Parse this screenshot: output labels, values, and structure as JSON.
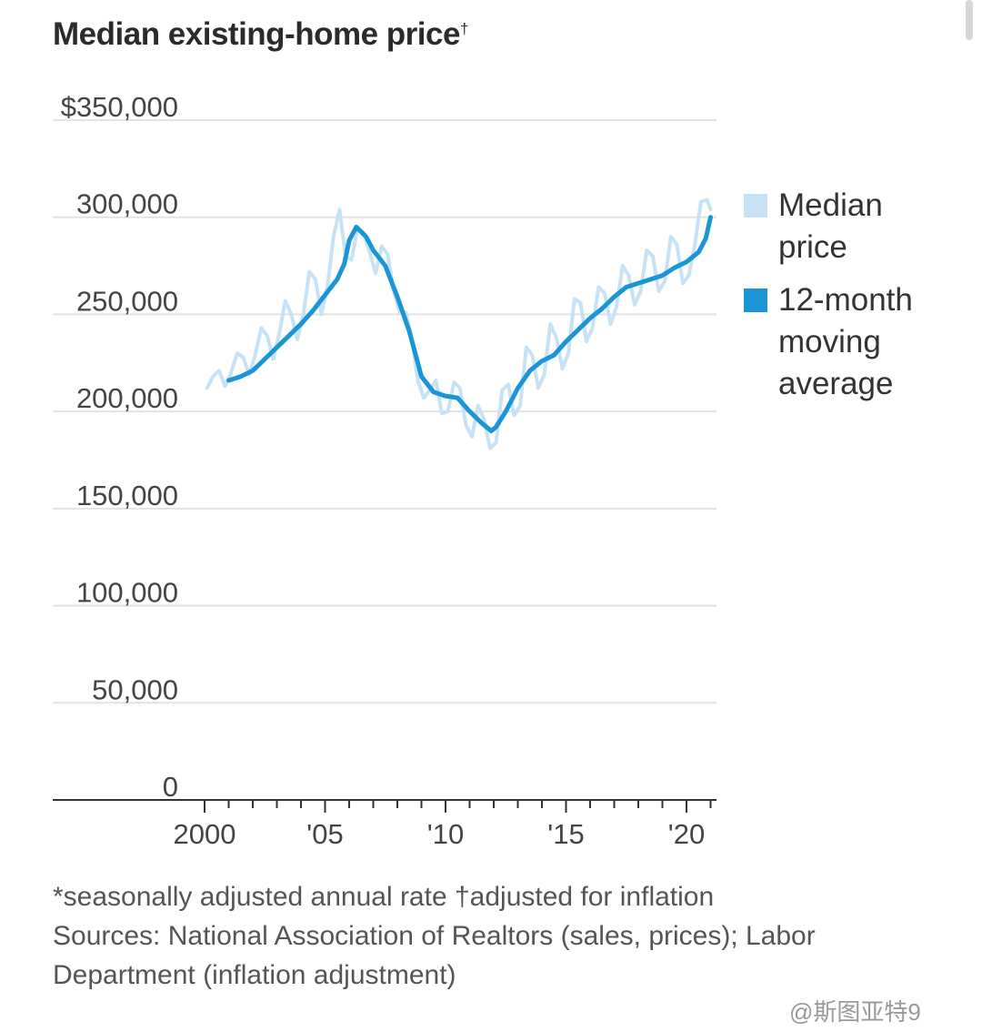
{
  "title": "Median existing-home price",
  "title_mark": "†",
  "legend": [
    {
      "label": "Median price",
      "color": "#c8e2f5"
    },
    {
      "label": "12-month moving average",
      "color": "#1a95d6"
    }
  ],
  "footnote": {
    "line1": "*seasonally adjusted annual rate †adjusted for inflation",
    "line2": "Sources: National Association of Realtors (sales, prices); Labor",
    "line3": "Department (inflation adjustment)"
  },
  "watermark": "@斯图亚特9",
  "chart_data": {
    "type": "line",
    "title": "Median existing-home price",
    "ylim": [
      0,
      350000
    ],
    "xlim": [
      1999.7,
      2021.1
    ],
    "y_ticks": [
      0,
      50000,
      100000,
      150000,
      200000,
      250000,
      300000,
      350000
    ],
    "y_tick_labels": [
      "0",
      "50,000",
      "100,000",
      "150,000",
      "200,000",
      "250,000",
      "300,000",
      "$350,000"
    ],
    "x_ticks": [
      2000,
      2005,
      2010,
      2015,
      2020
    ],
    "x_tick_labels": [
      "2000",
      "'05",
      "'10",
      "'15",
      "'20"
    ],
    "grid": true,
    "legend_position": "right",
    "series": [
      {
        "name": "Median price",
        "color": "#c8e2f5",
        "x": [
          2000.1,
          2000.35,
          2000.6,
          2000.85,
          2001.1,
          2001.35,
          2001.6,
          2001.85,
          2002.1,
          2002.35,
          2002.6,
          2002.85,
          2003.1,
          2003.35,
          2003.6,
          2003.85,
          2004.1,
          2004.35,
          2004.6,
          2004.85,
          2005.1,
          2005.35,
          2005.6,
          2005.85,
          2006.1,
          2006.35,
          2006.6,
          2006.85,
          2007.1,
          2007.35,
          2007.6,
          2007.85,
          2008.1,
          2008.35,
          2008.6,
          2008.85,
          2009.1,
          2009.35,
          2009.6,
          2009.85,
          2010.1,
          2010.35,
          2010.6,
          2010.85,
          2011.1,
          2011.35,
          2011.6,
          2011.85,
          2012.1,
          2012.35,
          2012.6,
          2012.85,
          2013.1,
          2013.35,
          2013.6,
          2013.85,
          2014.1,
          2014.35,
          2014.6,
          2014.85,
          2015.1,
          2015.35,
          2015.6,
          2015.85,
          2016.1,
          2016.35,
          2016.6,
          2016.85,
          2017.1,
          2017.35,
          2017.6,
          2017.85,
          2018.1,
          2018.35,
          2018.6,
          2018.85,
          2019.1,
          2019.35,
          2019.6,
          2019.85,
          2020.1,
          2020.35,
          2020.6,
          2020.85,
          2021.0
        ],
        "values": [
          212000,
          218000,
          221000,
          213000,
          220000,
          230000,
          228000,
          219000,
          229000,
          243000,
          239000,
          227000,
          240000,
          257000,
          250000,
          237000,
          250000,
          272000,
          268000,
          250000,
          264000,
          290000,
          304000,
          280000,
          278000,
          294000,
          292000,
          282000,
          271000,
          285000,
          281000,
          262000,
          251000,
          251000,
          238000,
          216000,
          207000,
          211000,
          216000,
          199000,
          200000,
          215000,
          212000,
          193000,
          187000,
          203000,
          196000,
          181000,
          184000,
          211000,
          214000,
          198000,
          203000,
          233000,
          229000,
          212000,
          219000,
          245000,
          238000,
          222000,
          230000,
          258000,
          256000,
          236000,
          243000,
          264000,
          261000,
          245000,
          254000,
          275000,
          270000,
          255000,
          262000,
          283000,
          280000,
          262000,
          267000,
          290000,
          286000,
          266000,
          270000,
          286000,
          308000,
          309000,
          304000
        ]
      },
      {
        "name": "12-month moving average",
        "color": "#1a95d6",
        "x": [
          2001.0,
          2001.5,
          2002.0,
          2002.5,
          2003.0,
          2003.5,
          2004.0,
          2004.5,
          2005.0,
          2005.5,
          2005.8,
          2006.0,
          2006.3,
          2006.7,
          2007.0,
          2007.5,
          2008.0,
          2008.5,
          2009.0,
          2009.5,
          2010.0,
          2010.5,
          2011.0,
          2011.5,
          2011.9,
          2012.1,
          2012.5,
          2013.0,
          2013.5,
          2014.0,
          2014.5,
          2015.0,
          2015.5,
          2016.0,
          2016.5,
          2017.0,
          2017.5,
          2018.0,
          2018.5,
          2019.0,
          2019.5,
          2020.0,
          2020.5,
          2020.8,
          2021.0
        ],
        "values": [
          216000,
          218000,
          221000,
          227000,
          233000,
          239000,
          245000,
          252000,
          260000,
          268000,
          276000,
          288000,
          295000,
          290000,
          283000,
          275000,
          259000,
          241000,
          218000,
          210000,
          208000,
          207000,
          200000,
          194000,
          190000,
          192000,
          200000,
          212000,
          221000,
          226000,
          229000,
          236000,
          242000,
          248000,
          253000,
          259000,
          264000,
          266000,
          268000,
          270000,
          274000,
          277000,
          282000,
          289000,
          300000
        ]
      }
    ]
  }
}
